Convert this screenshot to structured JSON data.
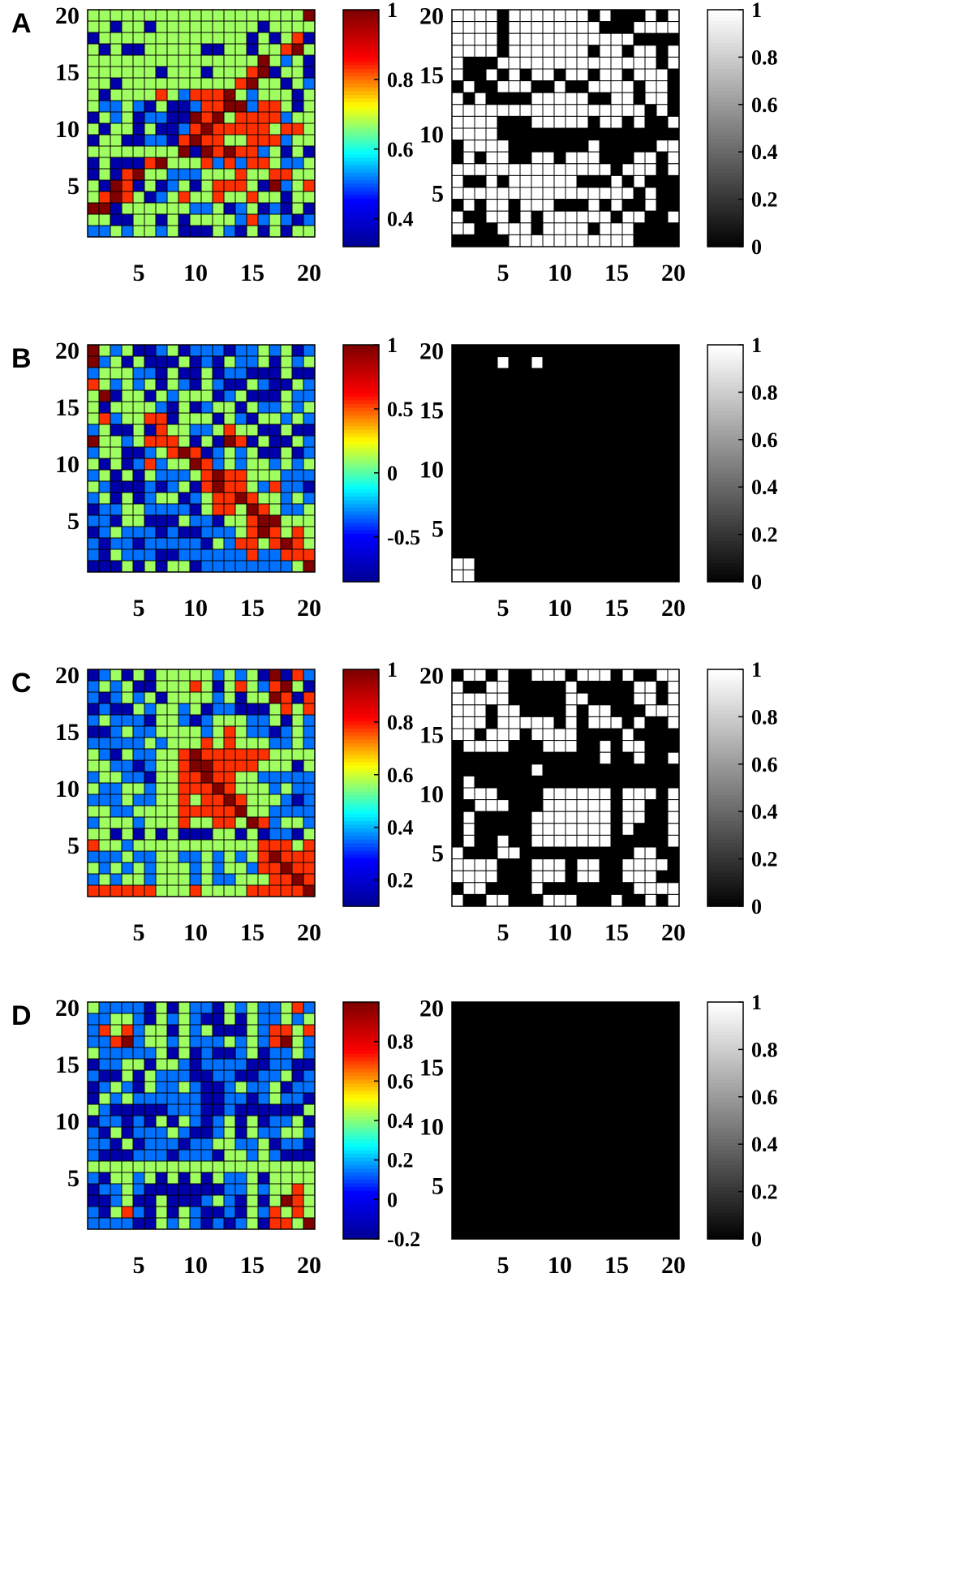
{
  "colors": {
    "jet": [
      "#00008f",
      "#0000ff",
      "#00ffff",
      "#ffff00",
      "#ff0000",
      "#800000"
    ],
    "gray": [
      "#000000",
      "#ffffff"
    ]
  },
  "chart_data": [
    {
      "panel": "A",
      "type": "heatmap",
      "n": 20,
      "colormap": "jet",
      "clim": [
        0.32,
        1
      ],
      "axis_ticks": [
        "5",
        "10",
        "15",
        "20"
      ],
      "colorbar_ticks": [
        {
          "v": 0.4,
          "label": "0.4"
        },
        {
          "v": 0.6,
          "label": "0.6"
        },
        {
          "v": 0.8,
          "label": "0.8"
        },
        {
          "v": 1,
          "label": "1"
        }
      ],
      "binary_colorbar_ticks": [
        "0",
        "0.2",
        "0.4",
        "0.6",
        "0.8",
        "1"
      ],
      "correlation_rows": [
        "9478776676868679977E",
        "88A86A978789879A9789",
        "A9769998678889A7A9DA",
        "8A5AA76469AA7CA98DE7",
        "865778758548886E5B9A",
        "788999A686A765DEA75A",
        "86A8659554777DE89A9B",
        "7A9958DCBDDDECB688A7",
        "7BB6BACAABDDEEBDD9AC",
        "A8B9ABBAAEDECDDDDB87",
        "7A86A8AABDEDDDDD9DD9",
        "AC9AABBADEDDCCDDDBC9",
        "8788999CEAEDEDDB8A8A",
        "A8AAADEC99DBDBDD9BBC",
        "A7ADEC8BBBCCCDC8DDC8",
        "9AEDA8AB9ACDDDCAEBCD",
        "8DED6AB9DC8D8CD89AC8",
        "EEA897889BB8ABCABA9A",
        "C9AA9CA8A998CBDB8BAB",
        "BB9B89B9AAA9BA9A8A88"
      ],
      "binary_rows": [
        "11110111111101000101",
        "11110111111110001111",
        "11110111111111110000",
        "11110111111101101101",
        "10001111111111111101",
        "10010101101101101110",
        "01001110010011110110",
        "10100001111100110110",
        "11111111111111111010",
        "11110001111101101001",
        "11110000000000000000",
        "01111000000010000011",
        "01011001101110001101",
        "11111111111111011101",
        "10010111111000101000",
        "11111111111111110100",
        "01011011100010100100",
        "10011010111111011001",
        "11001110111101110000",
        "00000111111111110000"
      ]
    },
    {
      "panel": "B",
      "type": "heatmap",
      "n": 20,
      "colormap": "jet",
      "clim": [
        -0.85,
        1
      ],
      "axis_ticks": [
        "5",
        "10",
        "15",
        "20"
      ],
      "colorbar_ticks": [
        {
          "v": -0.5,
          "label": "-0.5"
        },
        {
          "v": 0,
          "label": "0"
        },
        {
          "v": 0.5,
          "label": "0.5"
        },
        {
          "v": 1,
          "label": "1"
        }
      ],
      "binary_colorbar_ticks": [
        "0",
        "0.2",
        "0.4",
        "0.6",
        "0.8",
        "1"
      ],
      "correlation_rows": [
        "E9B8AABCABBBABB9B9AB",
        "EB5A9AAA9ABA9BB9ACB9",
        "B53CBBACAA9ABBAAA9AA",
        "D9B7B9A6BA7BAA9BAA9B",
        "4EAC9ACB9C8ABCAAA7BB",
        "5AC998BACAB99A8BB9B9",
        "9DBC8DDA9C8A9BA9CB9B",
        "B6AA8ADCCBB9DC8AA8AA",
        "E58B9DDDCA9AEDA5AA7B",
        "B89AAB9DEDAB9B9AA8AB",
        "8A9ABDBCCEDBCBC9BCB9",
        "B7A9ACBBBCDEDDCCCBBB",
        "9BAAABAB9ADEDDCBDBBA",
        "B8A9AB99ABCDDEDCCBCB",
        "ABB9CBBBBA9DDCEDCBBC",
        "BBA8CAAA9BBACCDEECCC",
        "AB9BBBABAABBBCDEDCDC",
        "BABBABBBBBACBDDCDEDC",
        "BA9BBBAABBBBBBDBBDDD",
        "AAA9A8A99ABBBBBBBBCE"
      ],
      "binary_rows": [
        "00000000000000000000",
        "00001001000000000000",
        "00000000000000000000",
        "00000000000000000000",
        "00000000000000000000",
        "00000000000000000000",
        "00000000000000000000",
        "00000000000000000000",
        "00000000000000000000",
        "00000000000000000000",
        "00000000000000000000",
        "00000000000000000000",
        "00000000000000000000",
        "00000000000000000000",
        "00000000000000000000",
        "00000000000000000000",
        "00000000000000000000",
        "00000000000000000000",
        "11000000000000000000",
        "11000000000000000000"
      ]
    },
    {
      "panel": "C",
      "type": "heatmap",
      "n": 20,
      "colormap": "jet",
      "clim": [
        0.1,
        1
      ],
      "axis_ticks": [
        "5",
        "10",
        "15",
        "20"
      ],
      "colorbar_ticks": [
        {
          "v": 0.2,
          "label": "0.2"
        },
        {
          "v": 0.4,
          "label": "0.4"
        },
        {
          "v": 0.6,
          "label": "0.6"
        },
        {
          "v": 0.8,
          "label": "0.8"
        },
        {
          "v": 1,
          "label": "1"
        }
      ],
      "binary_colorbar_ticks": [
        "0",
        "0.2",
        "0.4",
        "0.6",
        "0.8",
        "1"
      ],
      "correlation_rows": [
        "AB9A9A75CCCBCBCAEADB",
        "BCBCAA58CDCACDCBDECA",
        "BAB9B9A5CCCBCACCEDAD",
        "ABAA9BC5BCABBAAACDCD",
        "B9BBBA96BABCCCBB9ACB",
        "AABCBB94CCBCDCBBABCB",
        "BBBBBCB5CCDCDCCCBBCB",
        "CBA9BB84DEDDDDDDCCCC",
        "CCBBAB95DEEDDDDCCCAC",
        "BCCBBA95DDEDDCCBBBBB",
        "CBBCCB95DDDEDCCCBCBB",
        "BBBCBB95DCDDEDCCCBAB",
        "CCBBCC95DDDDDECCBBBB",
        "BCCCBC95DCCDDCEDBCCB",
        "99A9A9A5AAA99A9ABBA9",
        "DCCBCC95CCCCCCCDDDCD",
        "BBBCBB95BBCBCBCDEDDD",
        "CBCBCB95CBCBCCBDDEDD",
        "BCBCCB95CBCBBCCCDDED",
        "DDDDDD95CDCCCCDDDDDE"
      ],
      "binary_rows": [
        "01101001110111010011",
        "10011000001000001101",
        "11111000001100001101",
        "11101100001011000111",
        "11101111101011101001",
        "11011101111000010000",
        "01111000111001011000",
        "00000000000001001001",
        "00000001000000000000",
        "01000000000000000000",
        "01110000111111011101",
        "00111000111111011001",
        "01000001111111011001",
        "01000001111111010001",
        "01001001111111000001",
        "10001100000000001100",
        "11110001110110011110",
        "11110001110110011100",
        "01100001000000001111",
        "10011000111000100101"
      ]
    },
    {
      "panel": "D",
      "type": "heatmap",
      "n": 20,
      "colormap": "jet",
      "clim": [
        -0.2,
        1
      ],
      "axis_ticks": [
        "5",
        "10",
        "15",
        "20"
      ],
      "colorbar_ticks": [
        {
          "v": -0.2,
          "label": "-0.2"
        },
        {
          "v": 0,
          "label": "0"
        },
        {
          "v": 0.2,
          "label": "0.2"
        },
        {
          "v": 0.4,
          "label": "0.4"
        },
        {
          "v": 0.6,
          "label": "0.6"
        },
        {
          "v": 0.8,
          "label": "0.8"
        }
      ],
      "binary_colorbar_ticks": [
        "0",
        "0.2",
        "0.4",
        "0.6",
        "0.8",
        "1"
      ],
      "correlation_rows": [
        "CBBBBA5A6BBA9B3BBCDB",
        "BBCCBA4B5BAA9A2BBCBC",
        "BDCDB95A5BCAAA3BDDCD",
        "BBDEB96B5BBB9B4BDECB",
        "CBBBBB7A6ABAAB4ABBCB",
        "ABBCCA79BABBBBAABBAA",
        "BAA9A9BBBAABBAABB9AB",
        "ABCBA9BB9BAAB9BB9ABB",
        "A9B9BBBBBBAABBAB9BBA",
        "9BAAAAABBBAABAAAAAA9",
        "ABBABA8A7BAB9A6ABB9A",
        "BA9ABBB9BAABCA6BBCCB",
        "BBA9ABBBABBCCBBCABBA",
        "BAAABBBABBBACCB9BAAA",
        "11111611614116111111",
        "BA9CB8A9A9A9BB2ACCCC",
        "ABBCBAAAAAAABB3BCCDC",
        "AABCAA6AAAB9BA4ACEDC",
        "BACDBA5A6BAABA4BDCDC",
        "BBBBAA5B6BABAB3ADDCE"
      ],
      "binary_rows": [
        "00000000000000000000",
        "00000000000000000000",
        "00000000000000000000",
        "00000000000000000000",
        "00000000000000000000",
        "00000000000000000000",
        "00000000000000000000",
        "00000000000000000000",
        "00000000000000000000",
        "00000000000000000000",
        "00000000000000000000",
        "00000000000000000000",
        "00000000000000000000",
        "00000000000000000000",
        "00000000000000000000",
        "00000000000000000000",
        "00000000000000000000",
        "00000000000000000000",
        "00000000000000000000",
        "00000000000000000000"
      ]
    }
  ]
}
